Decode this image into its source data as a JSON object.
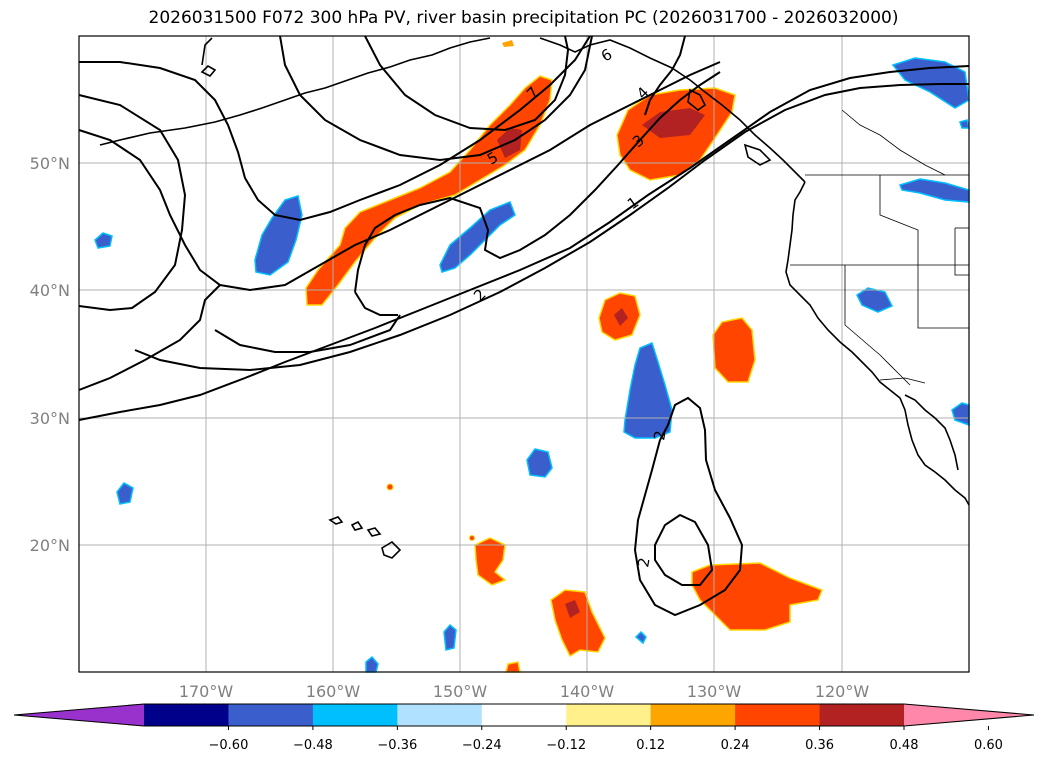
{
  "title": "2026031500 F072 300 hPa PV, river basin precipitation PC (2026031700 - 2026032000)",
  "lat_labels": [
    "50°N",
    "40°N",
    "30°N",
    "20°N"
  ],
  "lon_labels": [
    "170°W",
    "160°W",
    "150°W",
    "140°W",
    "130°W",
    "120°W"
  ],
  "contour_labels": [
    "1",
    "2",
    "3",
    "4",
    "5",
    "6",
    "7",
    "2",
    "2"
  ],
  "colorbar": {
    "ticks": [
      "−0.60",
      "−0.48",
      "−0.36",
      "−0.24",
      "−0.12",
      "0.12",
      "0.24",
      "0.36",
      "0.48",
      "0.60"
    ],
    "colors": [
      "#9932cc",
      "#00008b",
      "#3a5fcd",
      "#00bfff",
      "#b0e2ff",
      "#ffffff",
      "#fff08c",
      "#ffa500",
      "#ff4500",
      "#b22222",
      "#ff88aa"
    ]
  }
}
